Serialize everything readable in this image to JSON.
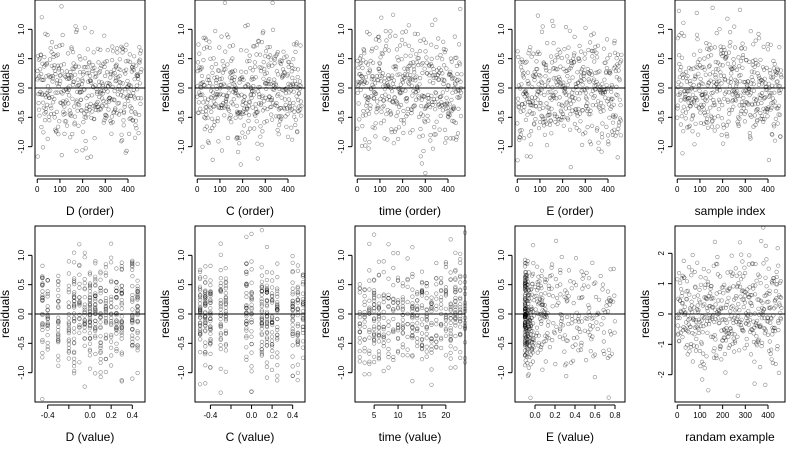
{
  "chart_data": [
    {
      "type": "scatter",
      "xlabel": "D (order)",
      "ylabel": "residuals",
      "xlim": [
        -10,
        475
      ],
      "ylim": [
        -1.5,
        1.5
      ],
      "xticks": [
        0,
        100,
        200,
        300,
        400
      ],
      "yticks": [
        -1.0,
        -0.5,
        0.0,
        0.5,
        1.0
      ],
      "ytick_labels": [
        "-1.0",
        "-0.5",
        "0.0",
        "0.5",
        "1.0"
      ],
      "hline": 0,
      "x_kind": "index",
      "n": 460
    },
    {
      "type": "scatter",
      "xlabel": "C (order)",
      "ylabel": "residuals",
      "xlim": [
        -10,
        475
      ],
      "ylim": [
        -1.5,
        1.5
      ],
      "xticks": [
        0,
        100,
        200,
        300,
        400
      ],
      "yticks": [
        -1.0,
        -0.5,
        0.0,
        0.5,
        1.0
      ],
      "ytick_labels": [
        "-1.0",
        "-0.5",
        "0.0",
        "0.5",
        "1.0"
      ],
      "hline": 0,
      "x_kind": "index",
      "n": 460
    },
    {
      "type": "scatter",
      "xlabel": "time (order)",
      "ylabel": "residuals",
      "xlim": [
        -10,
        475
      ],
      "ylim": [
        -1.5,
        1.5
      ],
      "xticks": [
        0,
        100,
        200,
        300,
        400
      ],
      "yticks": [
        -1.0,
        -0.5,
        0.0,
        0.5,
        1.0
      ],
      "ytick_labels": [
        "-1.0",
        "-0.5",
        "0.0",
        "0.5",
        "1.0"
      ],
      "hline": 0,
      "x_kind": "index",
      "n": 460
    },
    {
      "type": "scatter",
      "xlabel": "E (order)",
      "ylabel": "residuals",
      "xlim": [
        -10,
        475
      ],
      "ylim": [
        -1.5,
        1.5
      ],
      "xticks": [
        0,
        100,
        200,
        300,
        400
      ],
      "yticks": [
        -1.0,
        -0.5,
        0.0,
        0.5,
        1.0
      ],
      "ytick_labels": [
        "-1.0",
        "-0.5",
        "0.0",
        "0.5",
        "1.0"
      ],
      "hline": 0,
      "x_kind": "index",
      "n": 460
    },
    {
      "type": "scatter",
      "xlabel": "sample index",
      "ylabel": "residuals",
      "xlim": [
        -10,
        475
      ],
      "ylim": [
        -1.5,
        1.5
      ],
      "xticks": [
        0,
        100,
        200,
        300,
        400
      ],
      "yticks": [
        -1.0,
        -0.5,
        0.0,
        0.5,
        1.0
      ],
      "ytick_labels": [
        "-1.0",
        "-0.5",
        "0.0",
        "0.5",
        "1.0"
      ],
      "hline": 0,
      "x_kind": "index",
      "n": 460
    },
    {
      "type": "scatter",
      "xlabel": "D (value)",
      "ylabel": "residuals",
      "xlim": [
        -0.52,
        0.52
      ],
      "ylim": [
        -1.5,
        1.5
      ],
      "xticks": [
        -0.4,
        -0.2,
        0.0,
        0.2,
        0.4
      ],
      "xtick_labels": [
        "-0.4",
        "",
        "0.0",
        "0.2",
        "0.4"
      ],
      "yticks": [
        -1.0,
        -0.5,
        0.0,
        0.5,
        1.0
      ],
      "ytick_labels": [
        "-1.0",
        "-0.5",
        "0.0",
        "0.5",
        "1.0"
      ],
      "hline": 0,
      "x_kind": "levels",
      "x_levels": [
        -0.45,
        -0.4,
        -0.3,
        -0.2,
        -0.15,
        -0.1,
        -0.05,
        0.0,
        0.05,
        0.1,
        0.15,
        0.2,
        0.25,
        0.3,
        0.4,
        0.45
      ],
      "n": 460
    },
    {
      "type": "scatter",
      "xlabel": "C (value)",
      "ylabel": "residuals",
      "xlim": [
        -0.55,
        0.52
      ],
      "ylim": [
        -1.5,
        1.5
      ],
      "xticks": [
        -0.4,
        -0.2,
        0.0,
        0.2,
        0.4
      ],
      "xtick_labels": [
        "-0.4",
        "",
        "0.0",
        "0.2",
        "0.4"
      ],
      "yticks": [
        -1.0,
        -0.5,
        0.0,
        0.5,
        1.0
      ],
      "ytick_labels": [
        "-1.0",
        "-0.5",
        "0.0",
        "0.5",
        "1.0"
      ],
      "hline": 0,
      "x_kind": "levels",
      "x_levels": [
        -0.5,
        -0.45,
        -0.4,
        -0.3,
        -0.25,
        -0.05,
        0.0,
        0.1,
        0.15,
        0.2,
        0.25,
        0.4,
        0.45,
        0.5
      ],
      "n": 460
    },
    {
      "type": "scatter",
      "xlabel": "time (value)",
      "ylabel": "residuals",
      "xlim": [
        1,
        24
      ],
      "ylim": [
        -1.5,
        1.5
      ],
      "xticks": [
        5,
        10,
        15,
        20
      ],
      "yticks": [
        -1.0,
        -0.5,
        0.0,
        0.5,
        1.0
      ],
      "ytick_labels": [
        "-1.0",
        "-0.5",
        "0.0",
        "0.5",
        "1.0"
      ],
      "hline": 0,
      "x_kind": "levels",
      "x_levels": [
        2,
        3,
        4,
        5,
        6,
        7,
        8,
        9,
        10,
        11,
        12,
        13,
        14,
        15,
        16,
        17,
        18,
        19,
        20,
        21,
        22,
        23,
        24
      ],
      "n": 460
    },
    {
      "type": "scatter",
      "xlabel": "E (value)",
      "ylabel": "residuals",
      "xlim": [
        -0.2,
        0.9
      ],
      "ylim": [
        -1.5,
        1.5
      ],
      "xticks": [
        0.0,
        0.2,
        0.4,
        0.6,
        0.8
      ],
      "xtick_labels": [
        "0.0",
        "0.2",
        "0.4",
        "0.6",
        "0.8"
      ],
      "yticks": [
        -1.0,
        -0.5,
        0.0,
        0.5,
        1.0
      ],
      "ytick_labels": [
        "-1.0",
        "-0.5",
        "0.0",
        "0.5",
        "1.0"
      ],
      "hline": 0,
      "x_kind": "skewed",
      "n": 460
    },
    {
      "type": "scatter",
      "xlabel": "randam example",
      "ylabel": "residuals",
      "xlim": [
        -10,
        475
      ],
      "ylim": [
        -2.9,
        2.9
      ],
      "xticks": [
        0,
        100,
        200,
        300,
        400
      ],
      "yticks": [
        -2,
        -1,
        0,
        1,
        2
      ],
      "ytick_labels": [
        "-2",
        "-1",
        "0",
        "1",
        "2"
      ],
      "hline": 0,
      "x_kind": "index",
      "n": 460
    }
  ]
}
